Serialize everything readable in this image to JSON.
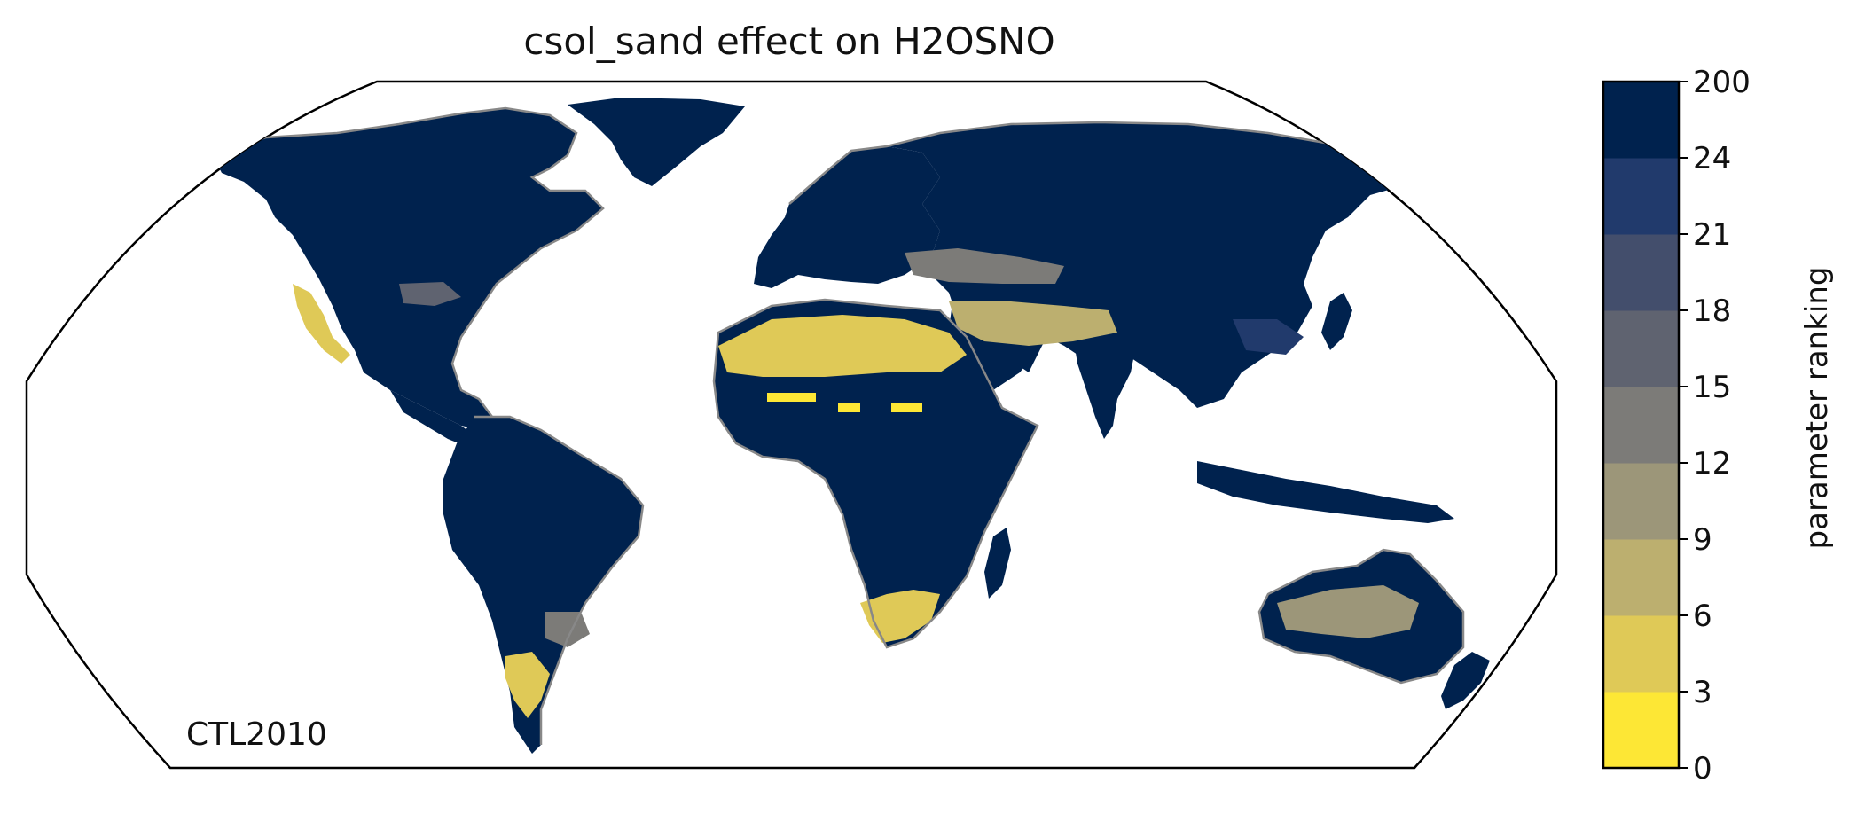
{
  "title": "csol_sand effect on H2OSNO",
  "annotation": "CTL2010",
  "colorbar": {
    "label": "parameter ranking",
    "tick_labels": [
      "0",
      "3",
      "6",
      "9",
      "12",
      "15",
      "18",
      "21",
      "24",
      "200"
    ],
    "bin_colors": [
      "#fde735",
      "#dfc957",
      "#bcaf6f",
      "#9c9679",
      "#7c7b78",
      "#5f6370",
      "#434e6c",
      "#213a6c",
      "#00224e"
    ]
  },
  "map": {
    "projection": "robinson",
    "land_fill": "#00224e",
    "coastline_color": "#888888"
  }
}
